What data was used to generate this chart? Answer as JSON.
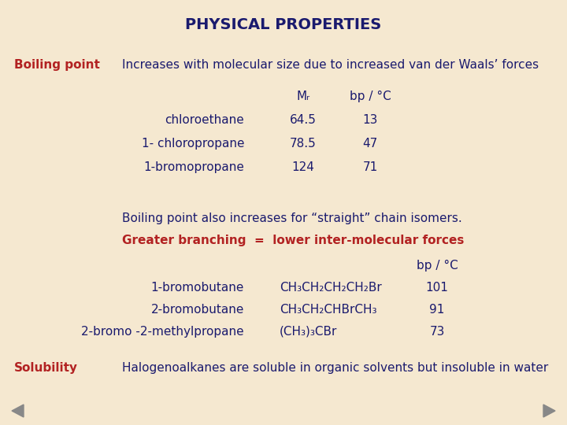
{
  "title": "PHYSICAL PROPERTIES",
  "bg_color": "#f5e8d0",
  "dark_blue": "#1a1a6e",
  "red": "#b22222",
  "gray_arrow": "#888888",
  "section1_label": "Boiling point",
  "section1_desc": "Increases with molecular size due to increased van der Waals’ forces",
  "table1_header_mr": "Mᵣ",
  "table1_header_bp": "bp / °C",
  "table1_rows": [
    [
      "chloroethane",
      "64.5",
      "13"
    ],
    [
      "1- chloropropane",
      "78.5",
      "47"
    ],
    [
      "1-bromopropane",
      "124",
      "71"
    ]
  ],
  "note_black": "Boiling point also increases for “straight” chain isomers.",
  "note_red": "Greater branching  =  lower inter-molecular forces",
  "table2_header_bp": "bp / °C",
  "table2_rows": [
    [
      "1-bromobutane",
      "CH₃CH₂CH₂CH₂Br",
      "101"
    ],
    [
      "2-bromobutane",
      "CH₃CH₂CHBrCH₃",
      "91"
    ],
    [
      "2-bromo -2-methylpropane",
      "(CH₃)₃CBr",
      "73"
    ]
  ],
  "section2_label": "Solubility",
  "section2_desc": "Halogenoalkanes are soluble in organic solvents but insoluble in water",
  "fs_title": 14,
  "fs_body": 11,
  "fs_label": 11
}
